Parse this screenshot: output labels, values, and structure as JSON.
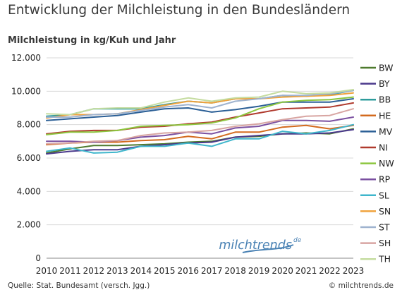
{
  "page": {
    "title": "Entwicklung der Milchleistung in den Bundesländern",
    "source": "Quelle: Stat. Bundesamt (versch. Jgg.)",
    "copyright": "© milchtrends.de",
    "logo_text": "milchtrends",
    "logo_suffix": "de"
  },
  "chart_data": {
    "type": "line",
    "title": "Entwicklung der Milchleistung in den Bundesländern",
    "ylabel": "Milchleistung in kg/Kuh und Jahr",
    "xlabel": "",
    "x": [
      2010,
      2011,
      2012,
      2013,
      2014,
      2015,
      2016,
      2017,
      2018,
      2019,
      2020,
      2021,
      2022,
      2023
    ],
    "ylim": [
      0,
      12000
    ],
    "yticks": [
      0,
      2000,
      4000,
      6000,
      8000,
      10000,
      12000
    ],
    "ytick_labels": [
      "0",
      "2.000",
      "4.000",
      "6.000",
      "8.000",
      "10.000",
      "12.000"
    ],
    "grid": "horizontal",
    "legend": "right",
    "series": [
      {
        "name": "BW",
        "color": "#4e7a2e",
        "values": [
          6300,
          6550,
          6750,
          6750,
          6800,
          6850,
          6950,
          7000,
          7250,
          7300,
          7450,
          7500,
          7450,
          7750
        ]
      },
      {
        "name": "BY",
        "color": "#4b3a8c",
        "values": [
          6250,
          6400,
          6500,
          6500,
          6700,
          6800,
          6900,
          6950,
          7250,
          7350,
          7450,
          7450,
          7500,
          7700
        ]
      },
      {
        "name": "BB",
        "color": "#2e9c9c",
        "values": [
          8500,
          8600,
          8950,
          8950,
          8950,
          9200,
          9400,
          9300,
          9550,
          9550,
          9750,
          9700,
          9800,
          10050
        ]
      },
      {
        "name": "HE",
        "color": "#d36a1e",
        "values": [
          6800,
          6900,
          6950,
          6950,
          7050,
          7100,
          7300,
          7150,
          7550,
          7550,
          7850,
          7950,
          7750,
          7950
        ]
      },
      {
        "name": "MV",
        "color": "#2b5f96",
        "values": [
          8250,
          8350,
          8450,
          8550,
          8750,
          8950,
          9000,
          8750,
          8900,
          9100,
          9350,
          9350,
          9350,
          9550
        ]
      },
      {
        "name": "NI",
        "color": "#b03a2e",
        "values": [
          7450,
          7600,
          7650,
          7650,
          7850,
          7900,
          8050,
          8150,
          8450,
          8700,
          8950,
          9000,
          9050,
          9300
        ]
      },
      {
        "name": "NW",
        "color": "#8cc63f",
        "values": [
          7400,
          7550,
          7550,
          7650,
          7900,
          7950,
          8000,
          8100,
          8400,
          8950,
          9350,
          9450,
          9500,
          9650
        ]
      },
      {
        "name": "RP",
        "color": "#7a4fa0",
        "values": [
          7000,
          7000,
          6950,
          7050,
          7250,
          7350,
          7550,
          7450,
          7800,
          7900,
          8250,
          8250,
          8200,
          8450
        ]
      },
      {
        "name": "SL",
        "color": "#3fb6cc",
        "values": [
          6400,
          6600,
          6300,
          6350,
          6700,
          6700,
          6900,
          6700,
          7150,
          7150,
          7600,
          7450,
          7650,
          8000
        ]
      },
      {
        "name": "SN",
        "color": "#f0a23c",
        "values": [
          8400,
          8600,
          8600,
          8650,
          8900,
          9150,
          9400,
          9300,
          9550,
          9550,
          9650,
          9700,
          9750,
          9900
        ]
      },
      {
        "name": "ST",
        "color": "#9fb3cf",
        "values": [
          8450,
          8450,
          8600,
          8650,
          8850,
          9050,
          9200,
          9000,
          9400,
          9550,
          9750,
          9750,
          9850,
          10050
        ]
      },
      {
        "name": "SH",
        "color": "#d8a5a2",
        "values": [
          6850,
          6900,
          7000,
          7050,
          7350,
          7500,
          7550,
          7650,
          7900,
          8050,
          8300,
          8500,
          8550,
          8950
        ]
      },
      {
        "name": "TH",
        "color": "#c5dca0",
        "values": [
          8650,
          8600,
          8950,
          9000,
          9000,
          9350,
          9600,
          9400,
          9600,
          9650,
          10000,
          9850,
          9900,
          10100
        ]
      }
    ]
  }
}
